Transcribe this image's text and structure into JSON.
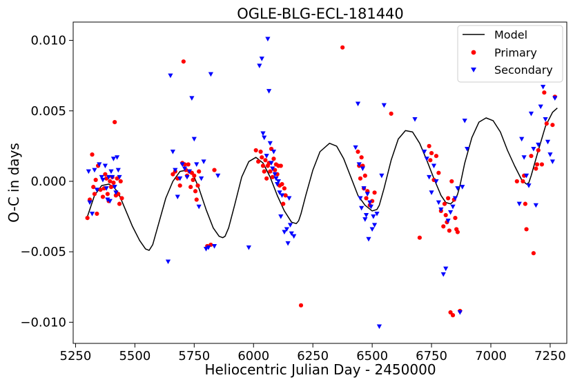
{
  "chart_data": {
    "type": "scatter",
    "title": "OGLE-BLG-ECL-181440",
    "xlabel": "Heliocentric Julian Day - 2450000",
    "ylabel": "O-C in days",
    "xlim": [
      5240,
      7320
    ],
    "ylim": [
      -0.0115,
      0.0113
    ],
    "xticks": [
      5250,
      5500,
      5750,
      6000,
      6250,
      6500,
      6750,
      7000,
      7250
    ],
    "xtick_labels": [
      "5250",
      "5500",
      "5750",
      "6000",
      "6250",
      "6500",
      "6750",
      "7000",
      "7250"
    ],
    "yticks": [
      -0.01,
      -0.005,
      0.0,
      0.005,
      0.01
    ],
    "ytick_labels": [
      "−0.010",
      "−0.005",
      "0.000",
      "0.005",
      "0.010"
    ],
    "legend": {
      "position": "top-right",
      "entries": [
        "Model",
        "Primary",
        "Secondary"
      ]
    },
    "colors": {
      "model": "#000000",
      "primary": "#ff0000",
      "secondary": "#0000ff"
    },
    "series": [
      {
        "name": "Model",
        "kind": "line",
        "x": [
          5300,
          5330,
          5360,
          5390,
          5410,
          5430,
          5460,
          5490,
          5520,
          5545,
          5560,
          5575,
          5600,
          5630,
          5660,
          5690,
          5720,
          5745,
          5770,
          5800,
          5830,
          5855,
          5870,
          5880,
          5895,
          5920,
          5950,
          5980,
          6010,
          6040,
          6070,
          6100,
          6130,
          6160,
          6180,
          6190,
          6200,
          6220,
          6250,
          6280,
          6320,
          6350,
          6380,
          6410,
          6440,
          6470,
          6500,
          6520,
          6530,
          6550,
          6580,
          6610,
          6640,
          6670,
          6700,
          6730,
          6760,
          6790,
          6810,
          6830,
          6850,
          6860,
          6870,
          6890,
          6920,
          6950,
          6980,
          7010,
          7040,
          7070,
          7100,
          7130,
          7150,
          7160,
          7170,
          7200,
          7230,
          7260,
          7280
        ],
        "y": [
          -0.0025,
          -0.001,
          -0.0003,
          -0.0002,
          -0.0004,
          -0.0008,
          -0.002,
          -0.0032,
          -0.0042,
          -0.0048,
          -0.0049,
          -0.0045,
          -0.003,
          -0.0012,
          0.0,
          0.0007,
          0.0008,
          0.0005,
          -0.0005,
          -0.002,
          -0.0033,
          -0.0039,
          -0.004,
          -0.0039,
          -0.0033,
          -0.0017,
          0.0003,
          0.0014,
          0.0017,
          0.0013,
          0.0003,
          -0.001,
          -0.0021,
          -0.0029,
          -0.003,
          -0.0028,
          -0.0023,
          -0.001,
          0.0008,
          0.0021,
          0.0027,
          0.0025,
          0.0016,
          0.0003,
          -0.001,
          -0.0017,
          -0.0021,
          -0.002,
          -0.0017,
          -0.0005,
          0.0015,
          0.003,
          0.0036,
          0.0035,
          0.0027,
          0.0015,
          0.0002,
          -0.001,
          -0.0015,
          -0.0016,
          -0.0013,
          -0.0009,
          -0.0003,
          0.0013,
          0.0031,
          0.0042,
          0.0045,
          0.0043,
          0.0035,
          0.0022,
          0.0011,
          0.0001,
          -0.0002,
          -0.0001,
          0.0004,
          0.0022,
          0.0039,
          0.0049,
          0.0052
        ]
      },
      {
        "name": "Primary",
        "kind": "scatter",
        "marker": "circle",
        "x": [
          5300,
          5310,
          5320,
          5325,
          5330,
          5335,
          5340,
          5345,
          5355,
          5365,
          5370,
          5375,
          5380,
          5385,
          5390,
          5395,
          5400,
          5405,
          5410,
          5415,
          5420,
          5425,
          5430,
          5435,
          5440,
          5445,
          5660,
          5670,
          5680,
          5690,
          5700,
          5705,
          5710,
          5715,
          5720,
          5725,
          5730,
          5735,
          5740,
          5745,
          5750,
          5755,
          5760,
          5765,
          5770,
          5805,
          5820,
          5835,
          6010,
          6020,
          6030,
          6035,
          6040,
          6045,
          6050,
          6055,
          6060,
          6065,
          6070,
          6075,
          6080,
          6085,
          6090,
          6095,
          6100,
          6105,
          6110,
          6115,
          6120,
          6125,
          6130,
          6135,
          6200,
          6375,
          6440,
          6445,
          6450,
          6455,
          6460,
          6465,
          6470,
          6475,
          6480,
          6490,
          6500,
          6510,
          6580,
          6700,
          6740,
          6745,
          6750,
          6760,
          6770,
          6780,
          6790,
          6800,
          6805,
          6810,
          6815,
          6820,
          6825,
          6830,
          6835,
          6840,
          6845,
          6850,
          6855,
          6860,
          6870,
          7110,
          7135,
          7140,
          7145,
          7150,
          7170,
          7180,
          7190,
          7195,
          7200,
          7215,
          7225,
          7235,
          7260,
          7270
        ],
        "y": [
          -0.0026,
          -0.0013,
          0.0019,
          -0.0004,
          -0.0009,
          0.0001,
          -0.0023,
          0.0011,
          -0.0006,
          -0.0011,
          -0.0005,
          0.0005,
          0.0002,
          -0.0009,
          -0.0014,
          0.0,
          -0.0004,
          0.0003,
          -0.0001,
          0.0042,
          -0.001,
          0.0002,
          -0.0009,
          -0.0016,
          0.0,
          -0.0012,
          0.0005,
          0.0007,
          0.0002,
          -0.0003,
          0.0013,
          0.0085,
          0.0012,
          0.0008,
          0.0004,
          0.0012,
          0.0007,
          -0.0004,
          0.0006,
          0.0001,
          0.0004,
          -0.0007,
          -0.0013,
          -0.0003,
          0.0007,
          -0.0046,
          -0.0045,
          0.0008,
          0.0022,
          0.0014,
          0.0021,
          0.0017,
          0.0011,
          0.0007,
          0.0015,
          0.0002,
          0.0011,
          0.0013,
          0.0007,
          0.0023,
          0.0003,
          0.0016,
          0.0008,
          0.0012,
          0.0005,
          0.0011,
          -0.0003,
          0.0011,
          -0.0002,
          -0.0016,
          -0.0005,
          -0.001,
          -0.0088,
          0.0095,
          0.0021,
          0.0011,
          0.0002,
          0.0017,
          0.0011,
          -0.0005,
          0.0004,
          -0.0012,
          -0.0007,
          -0.0017,
          -0.0014,
          -0.0008,
          0.0048,
          -0.004,
          0.0025,
          0.0015,
          0.002,
          0.0001,
          0.0018,
          0.0006,
          -0.0021,
          -0.0032,
          -0.0016,
          -0.0024,
          -0.0029,
          -0.0012,
          -0.0035,
          -0.0093,
          0.0,
          -0.0095,
          -0.0013,
          -0.0026,
          -0.0034,
          -0.0036,
          -0.0092,
          0.0,
          0.0,
          0.0004,
          -0.0016,
          -0.0034,
          0.0018,
          -0.0051,
          0.0009,
          0.0012,
          0.0022,
          0.0012,
          0.0063,
          0.0041,
          0.004,
          0.006
        ]
      },
      {
        "name": "Secondary",
        "kind": "scatter",
        "marker": "triangle-down",
        "x": [
          5305,
          5310,
          5320,
          5330,
          5340,
          5350,
          5360,
          5365,
          5375,
          5380,
          5385,
          5390,
          5395,
          5400,
          5405,
          5410,
          5415,
          5420,
          5425,
          5430,
          5435,
          5640,
          5650,
          5660,
          5670,
          5680,
          5690,
          5700,
          5710,
          5720,
          5730,
          5740,
          5750,
          5760,
          5770,
          5780,
          5790,
          5800,
          5810,
          5820,
          5835,
          5850,
          5980,
          6025,
          6035,
          6040,
          6045,
          6055,
          6060,
          6065,
          6070,
          6075,
          6080,
          6085,
          6090,
          6095,
          6100,
          6105,
          6110,
          6115,
          6120,
          6130,
          6140,
          6145,
          6150,
          6155,
          6160,
          6170,
          6430,
          6440,
          6445,
          6450,
          6455,
          6460,
          6465,
          6470,
          6475,
          6480,
          6485,
          6490,
          6495,
          6500,
          6505,
          6510,
          6520,
          6530,
          6540,
          6550,
          6680,
          6720,
          6730,
          6740,
          6750,
          6760,
          6770,
          6780,
          6790,
          6800,
          6810,
          6820,
          6830,
          6840,
          6850,
          6860,
          6870,
          6880,
          6890,
          6900,
          7120,
          7130,
          7140,
          7150,
          7160,
          7170,
          7180,
          7190,
          7200,
          7210,
          7220,
          7230,
          7240,
          7250,
          7260,
          7270
        ],
        "y": [
          0.0007,
          -0.0015,
          -0.0023,
          0.0008,
          -0.0006,
          0.0012,
          0.0003,
          0.0001,
          0.0011,
          -0.0005,
          -0.0013,
          0.0003,
          -0.0014,
          0.0007,
          0.0003,
          0.0016,
          -0.0004,
          -0.0008,
          0.0017,
          0.0008,
          0.0003,
          -0.0057,
          0.0075,
          0.0021,
          0.0008,
          -0.0011,
          0.0002,
          0.0012,
          0.0009,
          0.0003,
          0.0007,
          0.0059,
          0.003,
          0.0012,
          -0.0018,
          0.0002,
          0.0014,
          -0.0048,
          -0.0047,
          0.0076,
          -0.0046,
          0.0004,
          -0.0047,
          0.0082,
          0.0087,
          0.0034,
          0.0031,
          0.0018,
          0.0101,
          0.0064,
          0.0027,
          0.0013,
          0.0009,
          0.0021,
          0.0005,
          0.0002,
          -0.0002,
          0.0,
          -0.0008,
          -0.0025,
          -0.001,
          -0.0036,
          -0.0034,
          -0.0044,
          -0.0012,
          -0.0031,
          -0.0037,
          -0.0039,
          0.0024,
          0.0055,
          0.0012,
          -0.0012,
          -0.0019,
          0.0009,
          -0.0005,
          -0.0027,
          -0.0024,
          -0.0009,
          -0.0041,
          -0.0015,
          -0.0018,
          -0.0034,
          -0.0025,
          -0.0031,
          -0.0023,
          -0.0103,
          0.0004,
          0.0054,
          0.0044,
          0.0021,
          0.0016,
          0.0003,
          -0.0008,
          0.0011,
          0.0,
          -0.0015,
          -0.002,
          -0.0066,
          -0.0062,
          -0.0028,
          -0.0022,
          -0.0018,
          -0.0012,
          -0.0005,
          -0.0093,
          -0.0004,
          0.0043,
          0.0023,
          -0.0016,
          0.003,
          0.0017,
          0.0004,
          -0.0003,
          0.0048,
          0.0023,
          -0.0017,
          0.0026,
          0.0053,
          0.0067,
          0.0044,
          0.0028,
          0.0019,
          0.0014,
          0.0059
        ]
      }
    ]
  }
}
